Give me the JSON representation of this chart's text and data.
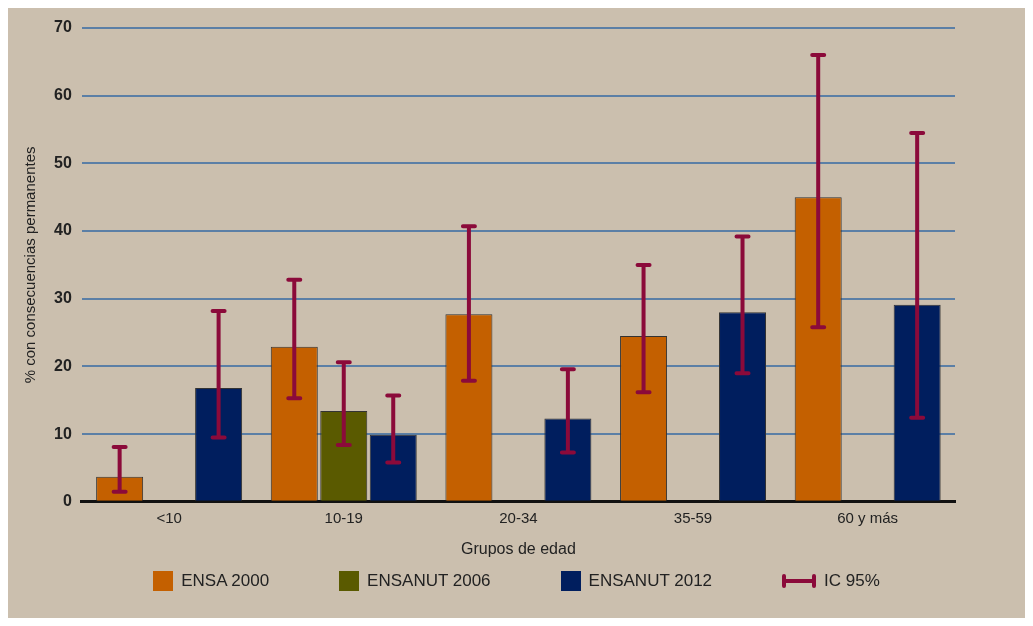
{
  "chart_data": {
    "type": "bar",
    "xlabel": "Grupos de edad",
    "ylabel": "% con consecuencias permanentes",
    "categories": [
      "<10",
      "10-19",
      "20-34",
      "35-59",
      "60 y más"
    ],
    "series": [
      {
        "name": "ENSA 2000",
        "color": "#c46000",
        "values": [
          3.7,
          22.9,
          27.7,
          24.5,
          45
        ],
        "errors": [
          [
            1.5,
            8.1
          ],
          [
            15.3,
            32.8
          ],
          [
            17.9,
            40.7
          ],
          [
            16.2,
            35
          ],
          [
            25.8,
            66
          ]
        ]
      },
      {
        "name": "ENSANUT 2006",
        "color": "#5a5a00",
        "values": [
          null,
          13.4,
          null,
          null,
          null
        ],
        "errors": [
          null,
          [
            8.4,
            20.6
          ],
          null,
          null,
          null
        ]
      },
      {
        "name": "ENSANUT 2012",
        "color": "#001e5e",
        "values": [
          16.8,
          9.9,
          12.3,
          28,
          29.1
        ],
        "errors": [
          [
            9.5,
            28.2
          ],
          [
            5.8,
            15.7
          ],
          [
            7.3,
            19.6
          ],
          [
            19,
            39.2
          ],
          [
            12.4,
            54.5
          ]
        ]
      }
    ],
    "annotations": [
      "IC 95%"
    ],
    "ylim": [
      0,
      70
    ],
    "yticks": [
      0,
      10,
      20,
      30,
      40,
      50,
      60,
      70
    ],
    "grid": "y",
    "legend": "bottom"
  }
}
